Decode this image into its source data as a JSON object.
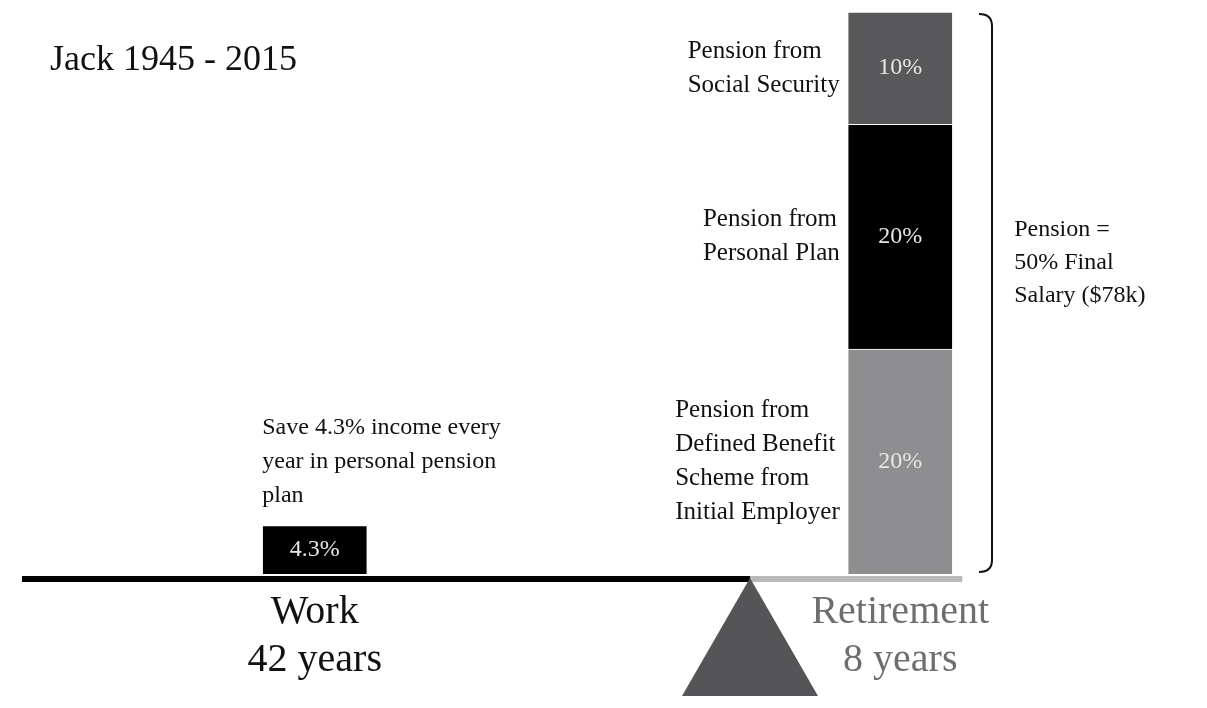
{
  "chart_data": {
    "type": "bar",
    "title": "Jack 1945 - 2015",
    "stacked": true,
    "tick_labels": "x",
    "ylim": [
      0,
      50
    ],
    "categories": [
      "Work 42 years",
      "Retirement 8 years"
    ],
    "series": [
      {
        "name": "Save 4.3% income every year in personal pension plan",
        "color": "#000000",
        "values": [
          4.3,
          null
        ],
        "value_labels": [
          "4.3%",
          null
        ]
      },
      {
        "name": "Pension from Defined Benefit Scheme from Initial Employer",
        "color": "#8e8e90",
        "values": [
          null,
          20
        ],
        "value_labels": [
          null,
          "20%"
        ]
      },
      {
        "name": "Pension from Personal Plan",
        "color": "#000000",
        "values": [
          null,
          20
        ],
        "value_labels": [
          null,
          "20%"
        ]
      },
      {
        "name": "Pension from Social Security",
        "color": "#58585a",
        "values": [
          null,
          10
        ],
        "value_labels": [
          null,
          "10%"
        ]
      }
    ],
    "annotations": [
      "Pension = 50% Final Salary ($78k)"
    ]
  }
}
